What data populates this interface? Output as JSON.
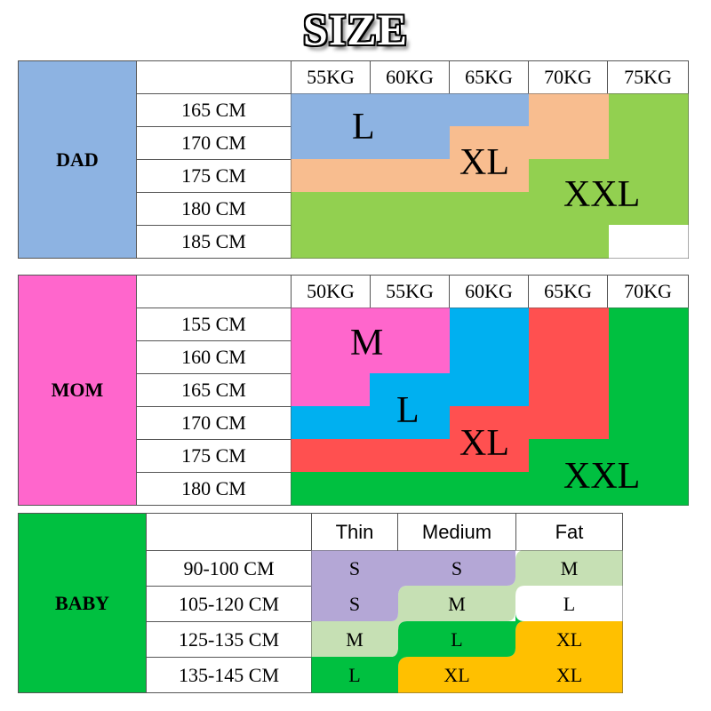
{
  "title": "SIZE",
  "colors": {
    "dad_label": "#8db3e2",
    "mom_label": "#ff66cc",
    "baby_label": "#00c040",
    "size_L_dad": "#8db3e2",
    "size_XL_dad": "#f8bd8f",
    "size_XXL_dad": "#92d050",
    "size_M_mom": "#ff66cc",
    "size_L_mom": "#00b0f0",
    "size_XL_mom": "#ff5050",
    "size_XXL_mom": "#00c040",
    "baby_S": "#b4a7d6",
    "baby_M": "#c6e0b4",
    "baby_L": "#00c040",
    "baby_XL": "#ffc000"
  },
  "dad": {
    "label": "DAD",
    "weights": [
      "55KG",
      "60KG",
      "65KG",
      "70KG",
      "75KG"
    ],
    "heights": [
      "165 CM",
      "170 CM",
      "175 CM",
      "180 CM",
      "185 CM"
    ],
    "sizes": [
      "L",
      "XL",
      "XXL"
    ]
  },
  "mom": {
    "label": "MOM",
    "weights": [
      "50KG",
      "55KG",
      "60KG",
      "65KG",
      "70KG"
    ],
    "heights": [
      "155 CM",
      "160 CM",
      "165 CM",
      "170 CM",
      "175 CM",
      "180 CM"
    ],
    "sizes": [
      "M",
      "L",
      "XL",
      "XXL"
    ]
  },
  "baby": {
    "label": "BABY",
    "columns": [
      "Thin",
      "Medium",
      "Fat"
    ],
    "rows": [
      {
        "height": "90-100 CM",
        "thin": "S",
        "medium": "S",
        "fat": "M"
      },
      {
        "height": "105-120 CM",
        "thin": "S",
        "medium": "M",
        "fat": "L"
      },
      {
        "height": "125-135 CM",
        "thin": "M",
        "medium": "L",
        "fat": "XL"
      },
      {
        "height": "135-145 CM",
        "thin": "L",
        "medium": "XL",
        "fat": "XL"
      }
    ]
  }
}
